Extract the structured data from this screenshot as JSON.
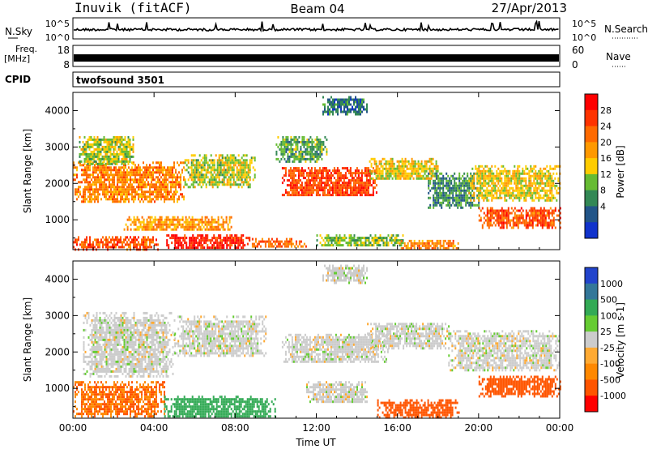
{
  "header": {
    "station": "Inuvik (fitACF)",
    "beam": "Beam 04",
    "date": "27/Apr/2013"
  },
  "nsky_panel": {
    "left_label": "N.Sky",
    "right_label": "N.Search",
    "tick_top": "10^5",
    "tick_bottom": "10^0"
  },
  "freq_panel": {
    "left_label_1": "Freq.",
    "left_label_2": "[MHz]",
    "left_tick_top": "18",
    "left_tick_bottom": "8",
    "right_label": "Nave",
    "right_tick_top": "60",
    "right_tick_bottom": "0"
  },
  "cpid_panel": {
    "label": "CPID",
    "value": "twofsound 3501"
  },
  "chart_data": [
    {
      "type": "heatmap",
      "name": "power",
      "ylabel": "Slant Range [km]",
      "xlabel": "",
      "ylim": [
        180,
        4500
      ],
      "yticks": [
        1000,
        2000,
        3000,
        4000
      ],
      "xticks": [
        "00:00",
        "04:00",
        "08:00",
        "12:00",
        "16:00",
        "20:00",
        "00:00"
      ],
      "colorbar": {
        "label": "Power [dB]",
        "ticks": [
          "28",
          "24",
          "20",
          "16",
          "12",
          "8",
          "4"
        ],
        "colors": [
          "#ff0000",
          "#ff3300",
          "#ff6a00",
          "#ff9900",
          "#ffcc00",
          "#66bb33",
          "#338855",
          "#225588",
          "#1133cc"
        ]
      },
      "regions": [
        {
          "t": [
            0.0,
            4.2
          ],
          "r": [
            200,
            550
          ],
          "level": 26
        },
        {
          "t": [
            4.6,
            8.7
          ],
          "r": [
            200,
            600
          ],
          "level": 30
        },
        {
          "t": [
            2.5,
            7.8
          ],
          "r": [
            700,
            1100
          ],
          "level": 20
        },
        {
          "t": [
            8.5,
            11.5
          ],
          "r": [
            250,
            500
          ],
          "level": 24
        },
        {
          "t": [
            12.0,
            16.3
          ],
          "r": [
            300,
            600
          ],
          "level": 12
        },
        {
          "t": [
            16.0,
            19.0
          ],
          "r": [
            200,
            450
          ],
          "level": 22
        },
        {
          "t": [
            0.0,
            5.5
          ],
          "r": [
            1500,
            2600
          ],
          "level": 22
        },
        {
          "t": [
            5.5,
            9.0
          ],
          "r": [
            1900,
            2800
          ],
          "level": 14
        },
        {
          "t": [
            10.3,
            15.0
          ],
          "r": [
            1650,
            2450
          ],
          "level": 27
        },
        {
          "t": [
            14.6,
            18.0
          ],
          "r": [
            2100,
            2700
          ],
          "level": 16
        },
        {
          "t": [
            17.5,
            20.0
          ],
          "r": [
            1300,
            2300
          ],
          "level": 8
        },
        {
          "t": [
            20.0,
            24.0
          ],
          "r": [
            800,
            1350
          ],
          "level": 26
        },
        {
          "t": [
            19.5,
            24.0
          ],
          "r": [
            1500,
            2500
          ],
          "level": 16
        },
        {
          "t": [
            0.3,
            3.0
          ],
          "r": [
            2500,
            3300
          ],
          "level": 14
        },
        {
          "t": [
            10.0,
            12.5
          ],
          "r": [
            2600,
            3300
          ],
          "level": 10
        },
        {
          "t": [
            12.3,
            14.5
          ],
          "r": [
            3900,
            4400
          ],
          "level": 6
        }
      ]
    },
    {
      "type": "heatmap",
      "name": "velocity",
      "ylabel": "Slant Range [km]",
      "xlabel": "Time UT",
      "ylim": [
        180,
        4500
      ],
      "yticks": [
        1000,
        2000,
        3000,
        4000
      ],
      "xticks": [
        "00:00",
        "04:00",
        "08:00",
        "12:00",
        "16:00",
        "20:00",
        "00:00"
      ],
      "colorbar": {
        "label": "Velocity [m s-1]",
        "ticks": [
          "1000",
          "500",
          "100",
          "25",
          "-25",
          "-100",
          "-500",
          "-1000"
        ],
        "colors": [
          "#2244cc",
          "#337799",
          "#33aa55",
          "#66cc33",
          "#cccccc",
          "#ffaa33",
          "#ff8800",
          "#ff5500",
          "#ff0000"
        ]
      },
      "regions": [
        {
          "t": [
            0.0,
            4.5
          ],
          "r": [
            200,
            1200
          ],
          "level": -300
        },
        {
          "t": [
            4.5,
            10.0
          ],
          "r": [
            200,
            800
          ],
          "level": 150
        },
        {
          "t": [
            0.5,
            5.0
          ],
          "r": [
            1300,
            3100
          ],
          "level": 0
        },
        {
          "t": [
            5.0,
            9.5
          ],
          "r": [
            1900,
            3000
          ],
          "level": 0
        },
        {
          "t": [
            10.3,
            15.5
          ],
          "r": [
            1700,
            2500
          ],
          "level": 0
        },
        {
          "t": [
            14.5,
            18.5
          ],
          "r": [
            2100,
            2800
          ],
          "level": 0
        },
        {
          "t": [
            11.5,
            14.5
          ],
          "r": [
            600,
            1200
          ],
          "level": 0
        },
        {
          "t": [
            15.0,
            19.0
          ],
          "r": [
            200,
            700
          ],
          "level": -400
        },
        {
          "t": [
            18.5,
            24.0
          ],
          "r": [
            1500,
            2600
          ],
          "level": 0
        },
        {
          "t": [
            20.0,
            24.0
          ],
          "r": [
            800,
            1350
          ],
          "level": -500
        },
        {
          "t": [
            12.3,
            14.5
          ],
          "r": [
            3900,
            4400
          ],
          "level": 0
        }
      ]
    }
  ]
}
